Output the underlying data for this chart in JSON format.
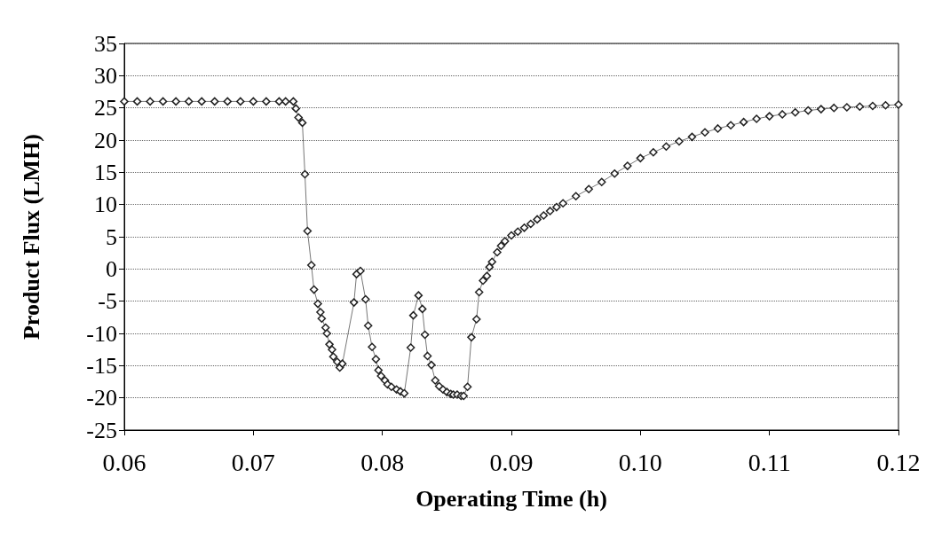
{
  "chart_data": {
    "type": "line",
    "xlabel": "Operating Time (h)",
    "ylabel": "Product Flux (LMH)",
    "xlim": [
      0.06,
      0.12
    ],
    "xticks": [
      0.06,
      0.07,
      0.08,
      0.09,
      {
        "value": 0.1,
        "label": "0.10"
      },
      0.11,
      0.12
    ],
    "ylim": [
      -25,
      35
    ],
    "yticks": [
      -25,
      -20,
      -15,
      -10,
      -5,
      0,
      5,
      10,
      15,
      20,
      25,
      30,
      35
    ],
    "grid": "y",
    "marker": "diamond",
    "line_style": "solid",
    "series": [
      {
        "color": "#222222",
        "x": [
          0.06,
          0.061,
          0.062,
          0.063,
          0.064,
          0.065,
          0.066,
          0.067,
          0.068,
          0.069,
          0.07,
          0.071,
          0.072,
          0.0725,
          0.0731,
          0.0733,
          0.0735,
          0.0738,
          0.074,
          0.0742,
          0.0745,
          0.0747,
          0.075,
          0.0752,
          0.0753,
          0.0756,
          0.0757,
          0.0759,
          0.0761,
          0.0762,
          0.0765,
          0.0767,
          0.0769,
          0.0778,
          0.078,
          0.0783,
          0.0787,
          0.0789,
          0.0792,
          0.0795,
          0.0797,
          0.0799,
          0.0802,
          0.0804,
          0.0807,
          0.0811,
          0.0814,
          0.0817,
          0.0822,
          0.0824,
          0.0828,
          0.0831,
          0.0833,
          0.0835,
          0.0838,
          0.0841,
          0.0844,
          0.0847,
          0.085,
          0.0853,
          0.0855,
          0.0858,
          0.0861,
          0.0863,
          0.0866,
          0.0869,
          0.0873,
          0.0875,
          0.0878,
          0.0881,
          0.0883,
          0.0885,
          0.0889,
          0.0892,
          0.0895,
          0.09,
          0.0905,
          0.091,
          0.0915,
          0.092,
          0.0925,
          0.093,
          0.0935,
          0.094,
          0.095,
          0.096,
          0.097,
          0.098,
          0.099,
          0.1,
          0.101,
          0.102,
          0.103,
          0.104,
          0.105,
          0.106,
          0.107,
          0.108,
          0.109,
          0.11,
          0.111,
          0.112,
          0.113,
          0.114,
          0.115,
          0.116,
          0.117,
          0.118,
          0.119,
          0.12
        ],
        "values": [
          26,
          26,
          26,
          26,
          26,
          26,
          26,
          26,
          26,
          26,
          26,
          26,
          26,
          26,
          26,
          24.9,
          23.5,
          22.7,
          14.7,
          5.9,
          0.6,
          -3.2,
          -5.4,
          -6.7,
          -7.7,
          -9.1,
          -10,
          -11.7,
          -12.5,
          -13.6,
          -14.4,
          -15.3,
          -14.7,
          -5.2,
          -0.8,
          -0.3,
          -4.7,
          -8.8,
          -12.1,
          -14,
          -15.7,
          -16.6,
          -17.3,
          -17.9,
          -18.3,
          -18.7,
          -19,
          -19.3,
          -12.2,
          -7.2,
          -4.1,
          -6.2,
          -10.2,
          -13.5,
          -14.9,
          -17.3,
          -18.2,
          -18.7,
          -19.1,
          -19.4,
          -19.5,
          -19.5,
          -19.7,
          -19.7,
          -18.3,
          -10.6,
          -7.8,
          -3.6,
          -1.8,
          -1.1,
          0.3,
          1.1,
          2.6,
          3.6,
          4.3,
          5.2,
          5.8,
          6.4,
          7,
          7.7,
          8.3,
          9,
          9.6,
          10.2,
          11.3,
          12.4,
          13.5,
          14.8,
          16,
          17.2,
          18.1,
          19,
          19.8,
          20.5,
          21.2,
          21.8,
          22.3,
          22.8,
          23.3,
          23.7,
          24,
          24.3,
          24.6,
          24.8,
          25,
          25.1,
          25.2,
          25.3,
          25.4,
          25.5
        ]
      }
    ]
  }
}
